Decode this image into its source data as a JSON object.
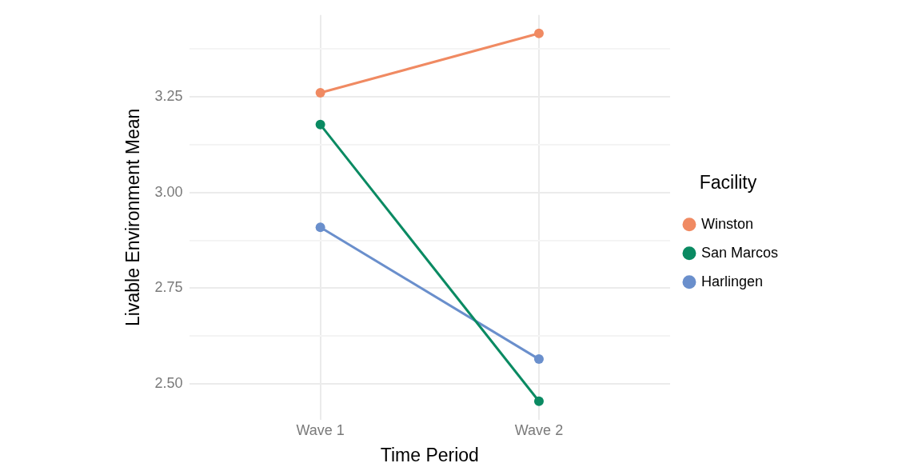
{
  "chart_data": {
    "type": "line",
    "xlabel": "Time Period",
    "ylabel": "Livable Environment Mean",
    "legend_title": "Facility",
    "legend": "right",
    "grid": true,
    "marker": "circle",
    "line_style": "solid",
    "categories": [
      "Wave 1",
      "Wave 2"
    ],
    "ylim": [
      2.407,
      3.463
    ],
    "yticks": [
      {
        "value": 2.5,
        "label": "2.50"
      },
      {
        "value": 2.625,
        "label": null
      },
      {
        "value": 2.75,
        "label": "2.75"
      },
      {
        "value": 2.875,
        "label": null
      },
      {
        "value": 3.0,
        "label": "3.00"
      },
      {
        "value": 3.125,
        "label": null
      },
      {
        "value": 3.25,
        "label": "3.25"
      },
      {
        "value": 3.375,
        "label": null
      }
    ],
    "series": [
      {
        "name": "Winston",
        "color": "#f08a62",
        "values": [
          3.26,
          3.415
        ]
      },
      {
        "name": "San Marcos",
        "color": "#0a8a62",
        "values": [
          3.177,
          2.455
        ]
      },
      {
        "name": "Harlingen",
        "color": "#6a8fcc",
        "values": [
          2.909,
          2.565
        ]
      }
    ]
  }
}
